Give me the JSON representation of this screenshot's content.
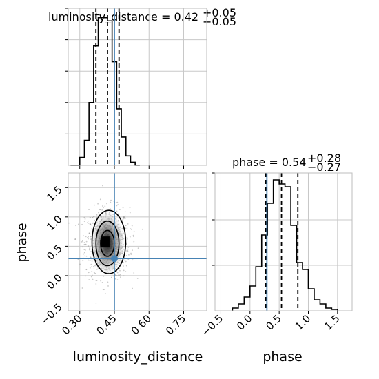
{
  "chart_data": {
    "type": "corner",
    "colors": {
      "truth": "#4682b4",
      "hist": "#000000",
      "grid": "#c8c8c8",
      "frame": "#bdbdbd",
      "points": "#8a8a8a"
    },
    "truth": {
      "luminosity_distance": 0.45,
      "phase": 0.29
    },
    "panels": [
      {
        "id": "luminosity_distance-hist",
        "type": "histogram",
        "title": {
          "prefix": "luminosity_distance = ",
          "value": "0.42",
          "plus": "+0.05",
          "minus": "−0.05"
        },
        "xlim": [
          0.25,
          0.85
        ],
        "quantiles": [
          0.37,
          0.42,
          0.47
        ],
        "truth": 0.45,
        "bins": [
          [
            0.26,
            0.28,
            0.0
          ],
          [
            0.28,
            0.3,
            0.0
          ],
          [
            0.3,
            0.32,
            0.05
          ],
          [
            0.32,
            0.34,
            0.16
          ],
          [
            0.34,
            0.36,
            0.4
          ],
          [
            0.36,
            0.38,
            0.76
          ],
          [
            0.38,
            0.4,
            0.94
          ],
          [
            0.4,
            0.42,
            0.94
          ],
          [
            0.42,
            0.44,
            0.92
          ],
          [
            0.44,
            0.46,
            0.66
          ],
          [
            0.46,
            0.48,
            0.36
          ],
          [
            0.48,
            0.5,
            0.18
          ],
          [
            0.5,
            0.52,
            0.06
          ],
          [
            0.52,
            0.54,
            0.02
          ],
          [
            0.54,
            0.56,
            0.0
          ]
        ],
        "ylim": [
          0,
          1
        ],
        "yticks": [
          0.2,
          0.4,
          0.6,
          0.8,
          1.0
        ]
      },
      {
        "id": "joint",
        "type": "2d-density",
        "xlim": [
          0.25,
          0.85
        ],
        "ylim": [
          -0.6,
          1.75
        ],
        "xticks": [
          "0.30",
          "0.45",
          "0.60",
          "0.75"
        ],
        "yticks": [
          "−0.5",
          "0.0",
          "0.5",
          "1.0",
          "1.5"
        ],
        "xlabel": "luminosity_distance",
        "ylabel": "phase",
        "center": [
          0.42,
          0.55
        ],
        "contours": [
          {
            "level": "outer",
            "rx": 0.073,
            "ry": 0.54
          },
          {
            "level": "middle",
            "rx": 0.05,
            "ry": 0.38
          },
          {
            "level": "inner",
            "rx": 0.03,
            "ry": 0.22
          }
        ],
        "truth": [
          0.45,
          0.29
        ]
      },
      {
        "id": "phase-hist",
        "type": "histogram",
        "title": {
          "prefix": "phase = ",
          "value": "0.54",
          "plus": "+0.28",
          "minus": "−0.27"
        },
        "xlim": [
          -0.6,
          1.75
        ],
        "quantiles": [
          0.27,
          0.54,
          0.82
        ],
        "truth": 0.29,
        "xticks": [
          "−0.5",
          "0.0",
          "0.5",
          "1.0",
          "1.5"
        ],
        "xlabel": "phase",
        "bins": [
          [
            -0.3,
            -0.2,
            0.02
          ],
          [
            -0.2,
            -0.1,
            0.05
          ],
          [
            -0.1,
            0.0,
            0.1
          ],
          [
            0.0,
            0.1,
            0.18
          ],
          [
            0.1,
            0.2,
            0.32
          ],
          [
            0.2,
            0.3,
            0.55
          ],
          [
            0.3,
            0.4,
            0.78
          ],
          [
            0.4,
            0.5,
            0.95
          ],
          [
            0.5,
            0.6,
            0.92
          ],
          [
            0.6,
            0.7,
            0.9
          ],
          [
            0.7,
            0.8,
            0.62
          ],
          [
            0.8,
            0.9,
            0.35
          ],
          [
            0.9,
            1.0,
            0.3
          ],
          [
            1.0,
            1.1,
            0.16
          ],
          [
            1.1,
            1.2,
            0.08
          ],
          [
            1.2,
            1.3,
            0.05
          ],
          [
            1.3,
            1.4,
            0.02
          ],
          [
            1.4,
            1.5,
            0.01
          ]
        ],
        "ylim": [
          0,
          1
        ],
        "yticks": [
          0.33,
          0.66,
          1.0
        ]
      }
    ]
  }
}
